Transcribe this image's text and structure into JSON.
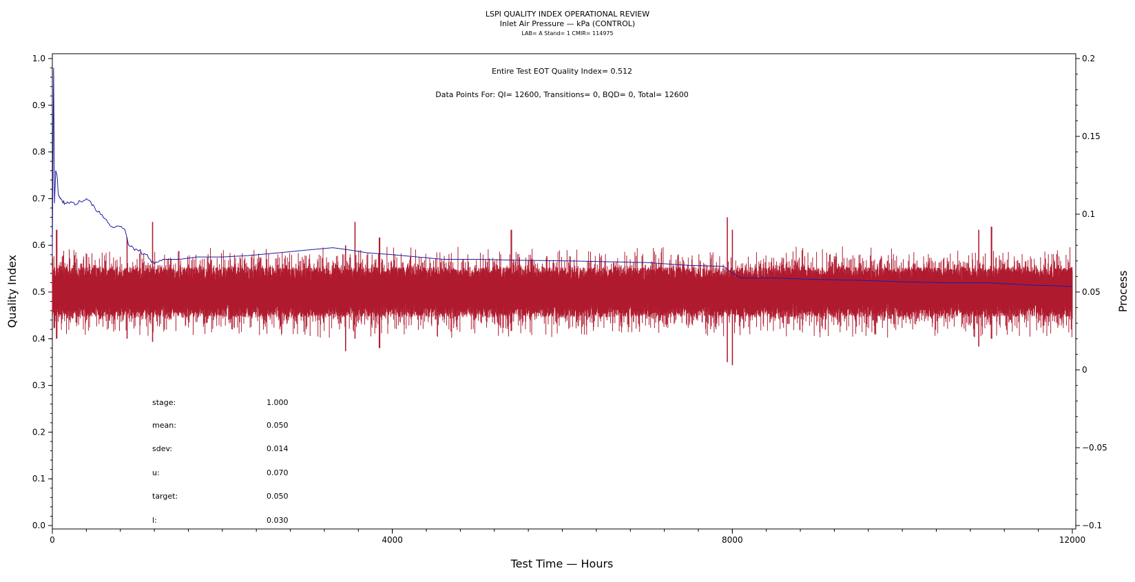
{
  "chart_data": {
    "type": "line",
    "title": "LSPI QUALITY INDEX OPERATIONAL REVIEW",
    "subtitle": "Inlet Air Pressure — kPa (CONTROL)",
    "subsubtitle": "LAB= A Stand= 1 CMIR= 114975",
    "annotations": [
      "Entire Test EOT Quality Index=   0.512",
      "Data Points For: QI= 12600, Transitions=     0, BQD=     0, Total= 12600"
    ],
    "xlabel": "Test Time — Hours",
    "ylabel_left": "Quality Index",
    "ylabel_right": "Process",
    "xlim": [
      0,
      12000
    ],
    "ylim_left": [
      0,
      1.0
    ],
    "ylim_right": [
      -0.1,
      0.2
    ],
    "x_ticks": [
      "0",
      "4000",
      "8000",
      "12000"
    ],
    "y_left_ticks": [
      "0.0",
      "0.1",
      "0.2",
      "0.3",
      "0.4",
      "0.5",
      "0.6",
      "0.7",
      "0.8",
      "0.9",
      "1.0"
    ],
    "y_right_ticks": [
      "-0.1",
      "-0.05",
      "0",
      "0.05",
      "0.1",
      "0.15",
      "0.2"
    ],
    "stats": [
      {
        "label": "stage:",
        "value": "1.000"
      },
      {
        "label": "mean:",
        "value": "0.050"
      },
      {
        "label": "sdev:",
        "value": "0.014"
      },
      {
        "label": "u:",
        "value": "0.070"
      },
      {
        "label": "target:",
        "value": "0.050"
      },
      {
        "label": "l:",
        "value": "0.030"
      }
    ],
    "series": [
      {
        "axis": "left",
        "color": "#1a1aa0",
        "x": [
          0,
          15,
          25,
          40,
          55,
          70,
          100,
          150,
          200,
          300,
          400,
          500,
          600,
          700,
          800,
          860,
          900,
          1000,
          1100,
          1200,
          1300,
          1500,
          1700,
          2000,
          2300,
          2600,
          3000,
          3300,
          3500,
          3700,
          4000,
          4300,
          4600,
          5000,
          5500,
          6000,
          6500,
          7000,
          7500,
          7900,
          8000,
          8100,
          8500,
          9000,
          9500,
          10000,
          10500,
          11000,
          11500,
          12000
        ],
        "values": [
          0.58,
          0.98,
          0.69,
          0.76,
          0.75,
          0.71,
          0.7,
          0.69,
          0.69,
          0.69,
          0.7,
          0.68,
          0.66,
          0.64,
          0.64,
          0.63,
          0.6,
          0.59,
          0.58,
          0.56,
          0.57,
          0.57,
          0.575,
          0.575,
          0.578,
          0.583,
          0.59,
          0.595,
          0.59,
          0.584,
          0.58,
          0.575,
          0.57,
          0.57,
          0.568,
          0.567,
          0.565,
          0.563,
          0.557,
          0.555,
          0.54,
          0.53,
          0.53,
          0.527,
          0.525,
          0.522,
          0.52,
          0.52,
          0.515,
          0.512
        ]
      },
      {
        "axis": "right",
        "color": "#b01a2e",
        "center": 0.05,
        "band": [
          0.03,
          0.07
        ],
        "spikes": [
          {
            "x": 50,
            "min": 0.02,
            "max": 0.09
          },
          {
            "x": 880,
            "min": 0.02,
            "max": 0.085
          },
          {
            "x": 1180,
            "min": 0.018,
            "max": 0.095
          },
          {
            "x": 3450,
            "min": 0.012,
            "max": 0.08
          },
          {
            "x": 3560,
            "min": 0.02,
            "max": 0.095
          },
          {
            "x": 3850,
            "min": 0.014,
            "max": 0.085
          },
          {
            "x": 5400,
            "min": 0.025,
            "max": 0.09
          },
          {
            "x": 7940,
            "min": 0.005,
            "max": 0.098
          },
          {
            "x": 8000,
            "min": 0.003,
            "max": 0.09
          },
          {
            "x": 10900,
            "min": 0.015,
            "max": 0.09
          },
          {
            "x": 11050,
            "min": 0.02,
            "max": 0.092
          }
        ]
      }
    ]
  }
}
